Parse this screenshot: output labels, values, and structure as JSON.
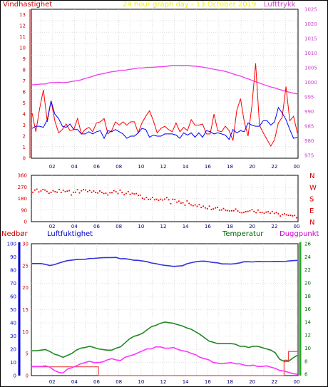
{
  "header": {
    "left_label": "Vindhastighet",
    "center_label": "24 hour graph day - 13.October 2019",
    "right_label": "Lufttrykk"
  },
  "bottom_header": {
    "precip_label": "Nedbør",
    "humidity_label": "Luftfuktighet",
    "temperature_label": "Temperatur",
    "dewpoint_label": "Duggpunkt"
  },
  "colors": {
    "wind_gust": "#ff0000",
    "wind_avg": "#0000ff",
    "pressure": "#ee44ee",
    "direction": "#ee0000",
    "humidity": "#3333dd",
    "temperature": "#228822",
    "dewpoint": "#ff33ff",
    "precip": "#ee4444",
    "sun": "#eeee22",
    "axis_wind": "#cc0000",
    "axis_pressure": "#cc44cc",
    "axis_humidity": "#0000cc",
    "axis_temperature": "#006600"
  },
  "chart_data": [
    {
      "type": "line",
      "x_ticks": [
        "02",
        "04",
        "06",
        "08",
        "10",
        "12",
        "14",
        "16",
        "18",
        "20",
        "22",
        "00"
      ],
      "ylabel_left": "Vindhastighet",
      "ylabel_right": "Lufttrykk",
      "yticks_left": [
        "0",
        "1",
        "2",
        "3",
        "4",
        "5",
        "6",
        "7",
        "8",
        "9",
        "10",
        "11",
        "12",
        "13"
      ],
      "yticks_right": [
        "975",
        "980",
        "985",
        "990",
        "995",
        "1000",
        "1005",
        "1010",
        "1015",
        "1020",
        "1025"
      ],
      "ylim_left": [
        0,
        13.5
      ],
      "ylim_right": [
        974,
        1025
      ],
      "series": [
        {
          "name": "Vindhastighet",
          "values": [
            4.1,
            2.4,
            4.5,
            6.2,
            3.3,
            5.2,
            3.4,
            2.3,
            2.6,
            3.1,
            2.5,
            2.6,
            3.6,
            2.2,
            2.6,
            2.8,
            2.4,
            3.2,
            3.3,
            3.6,
            2.2,
            2.5,
            3.3,
            3.0,
            3.3,
            3.0,
            3.3,
            3.3,
            2.3,
            3.2,
            3.8,
            4.3,
            3.4,
            2.3,
            2.7,
            2.9,
            2.6,
            2.4,
            3.2,
            2.4,
            2.8,
            2.5,
            3.5,
            3.0,
            3.0,
            3.1,
            2.2,
            2.2,
            4.0,
            2.5,
            2.4,
            2.9,
            2.5,
            1.6,
            4.3,
            5.4,
            3.3,
            2.0,
            4.7,
            8.6,
            3.0,
            2.3,
            1.7,
            1.1,
            1.7,
            3.2,
            3.7,
            6.5,
            3.4,
            3.8,
            2.3
          ],
          "avg_values": [
            2.7,
            2.9,
            2.9,
            2.8,
            3.5,
            5.2,
            4.0,
            3.6,
            2.9,
            2.8,
            3.1,
            2.6,
            2.6,
            2.2,
            2.2,
            2.4,
            2.2,
            2.4,
            2.5,
            1.8,
            2.5,
            2.4,
            2.6,
            2.4,
            2.2,
            1.8,
            2.0,
            2.0,
            2.3,
            2.7,
            2.6,
            1.9,
            2.1,
            2.0,
            2.0,
            2.2,
            2.2,
            2.2,
            2.1,
            1.8,
            2.3,
            2.1,
            2.3,
            1.9,
            2.3,
            1.9,
            2.5,
            2.4,
            2.2,
            2.3,
            2.2,
            2.1,
            1.7,
            2.6,
            2.3,
            2.5,
            2.4,
            3.2,
            3.0,
            2.9,
            2.9,
            3.4,
            3.4,
            3.0,
            3.3,
            4.6,
            4.1,
            3.5,
            2.6,
            1.8,
            1.9
          ]
        },
        {
          "name": "Lufttrykk",
          "values": [
            999.1,
            999.2,
            999.4,
            999.4,
            999.9,
            999.9,
            1000.0,
            999.9,
            1000.0,
            1000.3,
            1000.5,
            1000.8,
            1001.3,
            1001.7,
            1002.2,
            1002.7,
            1002.9,
            1003.3,
            1003.6,
            1003.8,
            1004.1,
            1004.1,
            1004.4,
            1004.6,
            1004.9,
            1004.9,
            1005.1,
            1005.1,
            1005.2,
            1005.3,
            1005.4,
            1005.6,
            1005.8,
            1005.8,
            1005.8,
            1005.8,
            1005.6,
            1005.5,
            1005.3,
            1005.1,
            1004.8,
            1004.5,
            1004.2,
            1004.0,
            1003.6,
            1003.1,
            1002.6,
            1002.2,
            1001.6,
            1001.1,
            1000.5,
            1000.0,
            999.4,
            998.9,
            998.4,
            998.0,
            997.5,
            997.1,
            996.7,
            996.3,
            996.0
          ]
        }
      ]
    },
    {
      "type": "scatter",
      "x_ticks": [
        "02",
        "04",
        "06",
        "08",
        "10",
        "12",
        "14",
        "16",
        "18",
        "20",
        "22",
        "00"
      ],
      "yticks_left": [
        "0",
        "90",
        "180",
        "270",
        "360"
      ],
      "yticks_right": [
        "N",
        "E",
        "S",
        "W",
        "N"
      ],
      "ylim": [
        0,
        360
      ],
      "series": [
        {
          "name": "direction",
          "values": [
            228,
            245,
            252,
            231,
            238,
            250,
            246,
            235,
            221,
            227,
            240,
            233,
            229,
            250,
            227,
            244,
            234,
            237,
            241,
            207,
            228,
            229,
            248,
            224,
            240,
            250,
            246,
            233,
            242,
            228,
            238,
            226,
            223,
            238,
            227,
            219,
            221,
            207,
            225,
            225,
            241,
            232,
            219,
            244,
            226,
            209,
            219,
            233,
            212,
            220,
            215,
            218,
            204,
            206,
            182,
            175,
            189,
            173,
            174,
            188,
            170,
            174,
            166,
            174,
            168,
            175,
            187,
            170,
            140,
            174,
            171,
            151,
            159,
            144,
            146,
            128,
            161,
            142,
            130,
            124,
            130,
            119,
            132,
            110,
            120,
            107,
            101,
            120,
            95,
            99,
            107,
            111,
            90,
            91,
            102,
            89,
            86,
            83,
            84,
            85,
            98,
            83,
            72,
            69,
            72,
            78,
            80,
            85,
            93,
            79,
            70,
            90,
            71,
            72,
            65,
            74,
            77,
            65,
            79,
            64,
            71,
            61,
            44,
            56,
            61,
            53,
            49,
            50,
            45,
            48,
            30
          ]
        }
      ]
    },
    {
      "type": "line",
      "x_ticks": [
        "02",
        "04",
        "06",
        "08",
        "10",
        "12",
        "14",
        "16",
        "18",
        "20",
        "22",
        "00"
      ],
      "yticks_precip": [
        "0",
        "5",
        "10",
        "15",
        "20",
        "25",
        "30"
      ],
      "yticks_humidity": [
        "0",
        "10",
        "20",
        "30",
        "40",
        "50",
        "60",
        "70",
        "80",
        "90",
        "100"
      ],
      "yticks_temperature": [
        "6",
        "8",
        "10",
        "12",
        "14",
        "16",
        "18",
        "20",
        "22",
        "24",
        "26"
      ],
      "ylim_precip": [
        0,
        30
      ],
      "ylim_humidity": [
        0,
        100
      ],
      "ylim_temperature": [
        5.8,
        26
      ],
      "series": [
        {
          "name": "Luftfuktighet",
          "values": [
            85.0,
            85.0,
            85.0,
            84.4,
            83.5,
            84.1,
            85.3,
            86.3,
            87.2,
            87.6,
            88.0,
            88.1,
            88.2,
            88.8,
            88.9,
            89.2,
            89.4,
            89.5,
            89.5,
            89.6,
            88.6,
            88.7,
            88.2,
            87.5,
            87.4,
            86.9,
            86.4,
            85.4,
            84.9,
            84.1,
            83.6,
            83.3,
            82.8,
            83.1,
            83.3,
            84.8,
            85.6,
            86.3,
            86.7,
            86.8,
            86.3,
            85.8,
            85.5,
            84.7,
            84.7,
            84.6,
            84.9,
            85.5,
            86.4,
            86.3,
            86.2,
            86.6,
            86.4,
            86.5,
            86.5,
            86.6,
            86.6,
            86.5,
            86.9,
            87.2,
            87.4
          ]
        },
        {
          "name": "Temperatur",
          "values": [
            9.6,
            9.6,
            9.7,
            9.8,
            9.5,
            9.1,
            8.9,
            8.6,
            8.9,
            9.2,
            9.7,
            10.0,
            10.1,
            10.3,
            10.1,
            9.9,
            9.8,
            9.7,
            9.7,
            10.0,
            10.2,
            10.8,
            11.4,
            11.8,
            12.0,
            12.3,
            12.8,
            13.3,
            13.5,
            13.8,
            14.0,
            13.9,
            13.8,
            13.6,
            13.4,
            13.1,
            12.9,
            12.5,
            12.1,
            11.6,
            11.1,
            10.9,
            10.7,
            10.7,
            10.7,
            10.7,
            10.6,
            10.3,
            10.3,
            10.1,
            10.3,
            10.3,
            10.1,
            9.9,
            9.7,
            9.3,
            8.3,
            8.0,
            8.0,
            8.5,
            8.9
          ]
        },
        {
          "name": "Duggpunkt",
          "values": [
            7.2,
            7.2,
            7.2,
            7.3,
            7.1,
            6.6,
            6.3,
            6.2,
            6.8,
            7.0,
            7.3,
            7.6,
            7.8,
            8.0,
            7.8,
            7.8,
            7.9,
            8.2,
            8.4,
            8.2,
            8.1,
            8.6,
            8.8,
            9.0,
            9.3,
            9.6,
            9.9,
            9.9,
            10.2,
            10.2,
            10.0,
            10.0,
            10.1,
            9.8,
            9.6,
            9.5,
            9.2,
            9.0,
            8.6,
            8.4,
            8.2,
            7.8,
            7.7,
            7.6,
            7.7,
            7.8,
            7.6,
            7.6,
            7.4,
            7.3,
            7.4,
            7.2,
            7.2,
            7.3,
            7.1,
            6.9,
            6.6,
            6.5,
            6.3,
            6.1,
            6.0
          ]
        },
        {
          "name": "Nedbør",
          "values": [
            2.0,
            2.0,
            2.0,
            2.0,
            2.0,
            2.0,
            2.0,
            2.0,
            2.0,
            2.0,
            2.0,
            2.0,
            2.0,
            2.0,
            2.0,
            0.0,
            0.0,
            0.0,
            0.0,
            0.0,
            0.0,
            0.0,
            0.0,
            0.0,
            0.0,
            0.0,
            0.0,
            0.0,
            0.0,
            0.0,
            0.0,
            0.0,
            0.0,
            0.0,
            0.0,
            0.0,
            0.0,
            0.0,
            0.0,
            0.0,
            0.0,
            0.0,
            0.0,
            0.0,
            0.0,
            0.0,
            0.0,
            0.0,
            0.0,
            0.0,
            0.0,
            0.0,
            0.0,
            0.0,
            0.0,
            0.0,
            0.0,
            3.5,
            5.5,
            5.5,
            5.5
          ]
        }
      ]
    }
  ]
}
